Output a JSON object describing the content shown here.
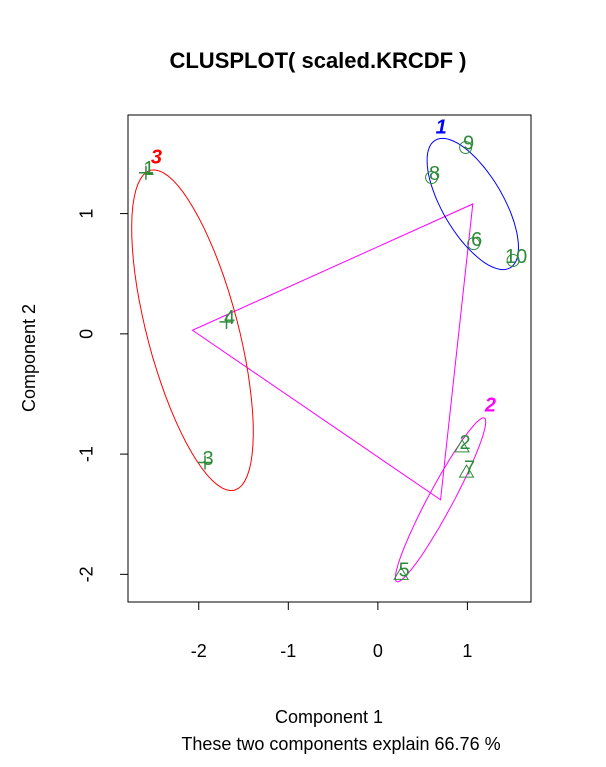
{
  "chart_data": {
    "type": "scatter",
    "title": "CLUSPLOT( scaled.KRCDF )",
    "xlabel": "Component 1",
    "ylabel": "Component 2",
    "subtitle": "These two components explain 66.76 %",
    "xlim": [
      -2.79,
      1.71
    ],
    "ylim": [
      -2.23,
      1.82
    ],
    "xticks": [
      -2,
      -1,
      0,
      1
    ],
    "yticks": [
      -2,
      -1,
      0,
      1
    ],
    "point_color": "#2e8b3a",
    "link_color": "#ff00ff",
    "series": [
      {
        "name": "1",
        "color": "#0000ff",
        "marker": "circle",
        "labels": [
          "6",
          "8",
          "9",
          "10"
        ],
        "x": [
          1.07,
          0.6,
          0.98,
          1.51
        ],
        "y": [
          0.75,
          1.3,
          1.55,
          0.61
        ],
        "ellipse": {
          "center": [
            1.06,
            1.08
          ],
          "major": [
            0.42,
            -0.53
          ],
          "minor": [
            0.29,
            0.13
          ]
        }
      },
      {
        "name": "2",
        "color": "#ff00ff",
        "marker": "triangle",
        "labels": [
          "2",
          "5",
          "7"
        ],
        "x": [
          0.94,
          0.26,
          0.99
        ],
        "y": [
          -0.94,
          -2.0,
          -1.15
        ],
        "ellipse": {
          "center": [
            0.7,
            -1.38
          ],
          "major": [
            0.49,
            0.68
          ],
          "minor": [
            0.12,
            -0.05
          ]
        }
      },
      {
        "name": "3",
        "color": "#ff0000",
        "marker": "plus",
        "labels": [
          "1",
          "3",
          "4"
        ],
        "x": [
          -2.59,
          -1.93,
          -1.69
        ],
        "y": [
          1.34,
          -1.07,
          0.1
        ],
        "ellipse": {
          "center": [
            -2.07,
            0.03
          ],
          "major": [
            -0.47,
            1.33
          ],
          "minor": [
            0.49,
            0.1
          ]
        }
      }
    ]
  }
}
